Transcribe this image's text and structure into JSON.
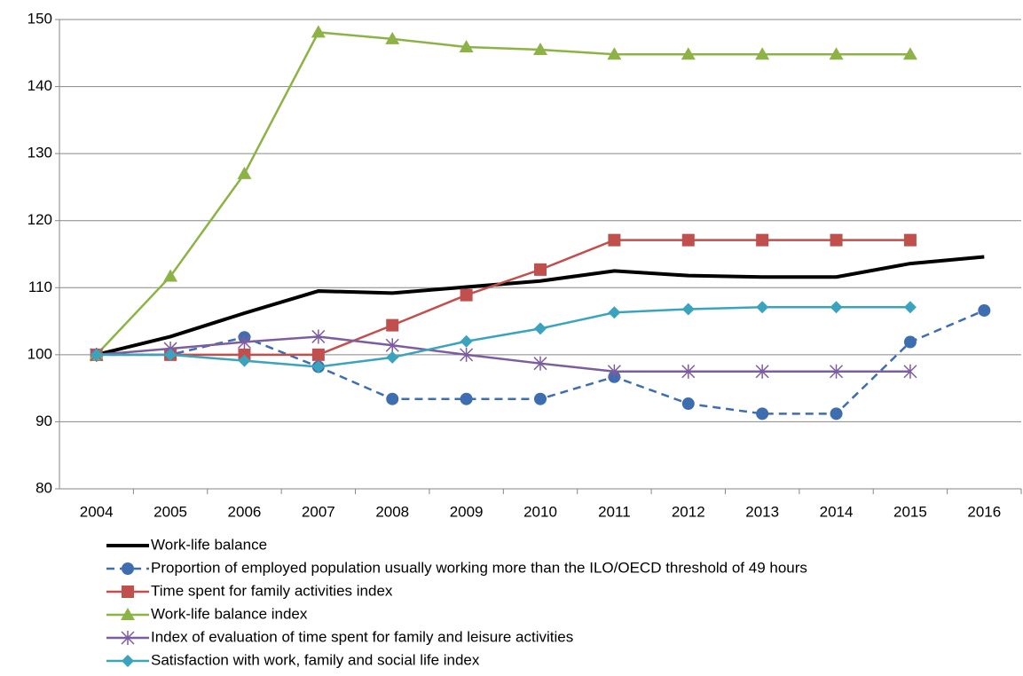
{
  "chart_data": {
    "type": "line",
    "categories": [
      "2004",
      "2005",
      "2006",
      "2007",
      "2008",
      "2009",
      "2010",
      "2011",
      "2012",
      "2013",
      "2014",
      "2015",
      "2016"
    ],
    "ylim": [
      80,
      150
    ],
    "yticks": [
      80,
      90,
      100,
      110,
      120,
      130,
      140,
      150
    ],
    "grid": true,
    "legend": "bottom",
    "series": [
      {
        "name": "Work-life balance",
        "color": "#000000",
        "marker": "none",
        "dash": false,
        "values": [
          100,
          102.7,
          106.2,
          109.5,
          109.2,
          110.1,
          111,
          112.5,
          111.8,
          111.6,
          111.6,
          113.6,
          114.6
        ]
      },
      {
        "name": "Proportion of employed population usually working more than the ILO/OECD threshold of 49 hours",
        "color": "#3e6db0",
        "marker": "circle",
        "dash": true,
        "values": [
          100,
          100,
          102.6,
          98.2,
          93.4,
          93.4,
          93.4,
          96.7,
          92.7,
          91.2,
          91.2,
          101.9,
          106.6
        ]
      },
      {
        "name": "Time spent for family activities index",
        "color": "#c0504d",
        "marker": "square",
        "dash": false,
        "values": [
          100,
          100,
          100,
          100,
          104.4,
          108.9,
          112.7,
          117.1,
          117.1,
          117.1,
          117.1,
          117.1,
          null
        ]
      },
      {
        "name": "Work-life balance index",
        "color": "#8db347",
        "marker": "triangle",
        "dash": false,
        "values": [
          100,
          111.7,
          127,
          148.1,
          147.1,
          145.9,
          145.5,
          144.8,
          144.8,
          144.8,
          144.8,
          144.8,
          null
        ]
      },
      {
        "name": "Index of evaluation of time spent for family and leisure activities",
        "color": "#7c5ea0",
        "marker": "star",
        "dash": false,
        "values": [
          100,
          100.9,
          101.9,
          102.7,
          101.4,
          100,
          98.7,
          97.5,
          97.5,
          97.5,
          97.5,
          97.5,
          null
        ]
      },
      {
        "name": "Satisfaction with work, family and social life index",
        "color": "#3ba3bd",
        "marker": "diamond",
        "dash": false,
        "values": [
          100,
          100,
          99.1,
          98.2,
          99.6,
          102,
          103.9,
          106.3,
          106.8,
          107.1,
          107.1,
          107.1,
          null
        ]
      }
    ]
  }
}
